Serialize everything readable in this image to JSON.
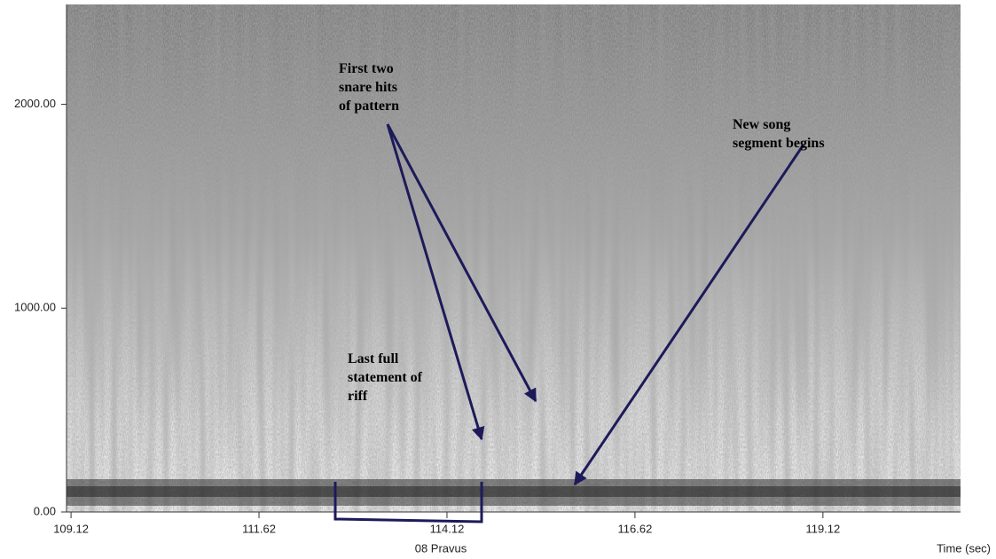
{
  "chart_data": {
    "type": "spectrogram",
    "xlabel": "Time (sec)",
    "track_label": "08 Pravus",
    "xlim": [
      109.06,
      120.95
    ],
    "ylim": [
      0,
      2490
    ],
    "xticks": [
      109.12,
      111.62,
      114.12,
      116.62,
      119.12
    ],
    "yticks": [
      {
        "value": 0,
        "label": "0.00"
      },
      {
        "value": 1000,
        "label": "1000.00"
      },
      {
        "value": 2000,
        "label": "2000.00"
      }
    ],
    "annotations": [
      {
        "lines": [
          "First two",
          "snare hits",
          "of pattern"
        ]
      },
      {
        "lines": [
          "New song",
          "segment begins"
        ]
      },
      {
        "lines": [
          "Last full",
          "statement of",
          "riff"
        ]
      }
    ]
  }
}
